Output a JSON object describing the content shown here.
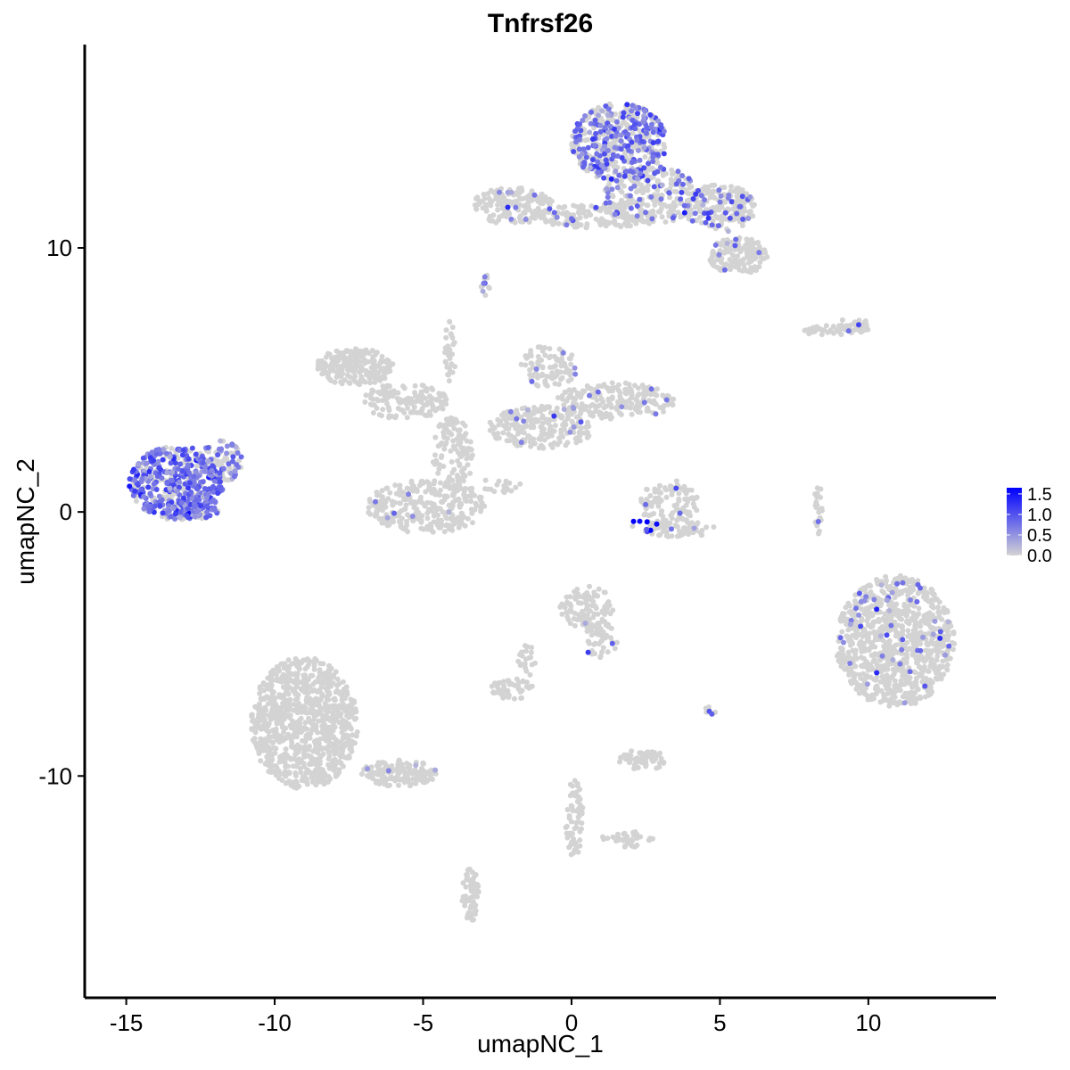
{
  "chart_data": {
    "type": "scatter",
    "title": "Tnfrsf26",
    "xlabel": "umapNC_1",
    "ylabel": "umapNC_2",
    "xlim": [
      -16.4,
      14.3
    ],
    "ylim": [
      -18.4,
      17.7
    ],
    "x_ticks": [
      -15,
      -10,
      -5,
      0,
      5,
      10
    ],
    "y_ticks": [
      -10,
      0,
      10
    ],
    "x_tick_labels": [
      "-15",
      "-10",
      "-5",
      "0",
      "5",
      "10"
    ],
    "y_tick_labels": [
      "-10",
      "0",
      "10"
    ],
    "grid": false,
    "colors": {
      "low": "#d3d3d3",
      "high": "#0000ff"
    },
    "legend": {
      "placement": "right",
      "min": 0,
      "max": 1.65,
      "labels": [
        "1.5",
        "1.0",
        "0.5",
        "0.0"
      ],
      "values": [
        1.5,
        1.0,
        0.5,
        0.0
      ]
    },
    "clusters": [
      {
        "cx": -13.3,
        "cy": 1.1,
        "rx": 1.6,
        "ry": 1.4,
        "n": 520,
        "expr_frac": 0.65,
        "expr_mean": 0.8
      },
      {
        "cx": -11.8,
        "cy": 1.9,
        "rx": 0.7,
        "ry": 0.8,
        "n": 80,
        "expr_frac": 0.5,
        "expr_mean": 0.7
      },
      {
        "cx": -12.4,
        "cy": 0.0,
        "rx": 0.5,
        "ry": 0.25,
        "n": 30,
        "expr_frac": 0.6,
        "expr_mean": 0.7
      },
      {
        "cx": 1.6,
        "cy": 14.0,
        "rx": 1.6,
        "ry": 1.5,
        "n": 480,
        "expr_frac": 0.4,
        "expr_mean": 0.8
      },
      {
        "cx": 2.7,
        "cy": 12.0,
        "rx": 1.6,
        "ry": 1.1,
        "n": 260,
        "expr_frac": 0.2,
        "expr_mean": 0.8
      },
      {
        "cx": 5.0,
        "cy": 11.5,
        "rx": 1.2,
        "ry": 0.9,
        "n": 200,
        "expr_frac": 0.12,
        "expr_mean": 0.8
      },
      {
        "cx": 5.6,
        "cy": 9.7,
        "rx": 1.0,
        "ry": 0.7,
        "n": 150,
        "expr_frac": 0.06,
        "expr_mean": 0.7
      },
      {
        "cx": -2.0,
        "cy": 11.6,
        "rx": 1.4,
        "ry": 0.7,
        "n": 160,
        "expr_frac": 0.08,
        "expr_mean": 0.8
      },
      {
        "cx": 0.8,
        "cy": 11.2,
        "rx": 2.0,
        "ry": 0.45,
        "n": 140,
        "expr_frac": 0.1,
        "expr_mean": 0.8
      },
      {
        "cx": -2.9,
        "cy": 8.6,
        "rx": 0.15,
        "ry": 0.4,
        "n": 12,
        "expr_frac": 0.2,
        "expr_mean": 0.6
      },
      {
        "cx": -7.3,
        "cy": 5.5,
        "rx": 1.3,
        "ry": 0.7,
        "n": 210,
        "expr_frac": 0.0,
        "expr_mean": 0.0
      },
      {
        "cx": -5.6,
        "cy": 4.2,
        "rx": 1.4,
        "ry": 0.7,
        "n": 140,
        "expr_frac": 0.0,
        "expr_mean": 0.0
      },
      {
        "cx": -4.0,
        "cy": 2.2,
        "rx": 0.7,
        "ry": 1.4,
        "n": 120,
        "expr_frac": 0.0,
        "expr_mean": 0.0
      },
      {
        "cx": -4.9,
        "cy": 0.2,
        "rx": 2.0,
        "ry": 1.0,
        "n": 300,
        "expr_frac": 0.01,
        "expr_mean": 0.6
      },
      {
        "cx": -1.0,
        "cy": 3.2,
        "rx": 1.8,
        "ry": 0.8,
        "n": 220,
        "expr_frac": 0.02,
        "expr_mean": 0.6
      },
      {
        "cx": -0.8,
        "cy": 5.5,
        "rx": 1.0,
        "ry": 0.8,
        "n": 90,
        "expr_frac": 0.03,
        "expr_mean": 0.6
      },
      {
        "cx": 1.5,
        "cy": 4.2,
        "rx": 2.0,
        "ry": 0.7,
        "n": 200,
        "expr_frac": 0.03,
        "expr_mean": 0.6
      },
      {
        "cx": -4.1,
        "cy": 6.1,
        "rx": 0.2,
        "ry": 1.2,
        "n": 30,
        "expr_frac": 0.0,
        "expr_mean": 0.0
      },
      {
        "cx": -2.6,
        "cy": 1.0,
        "rx": 0.9,
        "ry": 0.3,
        "n": 20,
        "expr_frac": 0.0,
        "expr_mean": 0.0
      },
      {
        "cx": 3.3,
        "cy": 0.3,
        "rx": 1.0,
        "ry": 0.9,
        "n": 110,
        "expr_frac": 0.02,
        "expr_mean": 0.8
      },
      {
        "cx": 3.6,
        "cy": -0.6,
        "rx": 1.2,
        "ry": 0.4,
        "n": 60,
        "expr_frac": 0.08,
        "expr_mean": 0.9
      },
      {
        "cx": 2.4,
        "cy": -0.5,
        "rx": 0.5,
        "ry": 0.25,
        "n": 10,
        "expr_frac": 0.6,
        "expr_mean": 1.5
      },
      {
        "cx": 8.8,
        "cy": 6.9,
        "rx": 1.2,
        "ry": 0.2,
        "n": 50,
        "expr_frac": 0.02,
        "expr_mean": 0.6
      },
      {
        "cx": 9.5,
        "cy": 7.1,
        "rx": 0.5,
        "ry": 0.25,
        "n": 25,
        "expr_frac": 0.06,
        "expr_mean": 0.7
      },
      {
        "cx": 8.3,
        "cy": 0.1,
        "rx": 0.15,
        "ry": 1.0,
        "n": 25,
        "expr_frac": 0.04,
        "expr_mean": 0.6
      },
      {
        "cx": 10.9,
        "cy": -4.9,
        "rx": 2.0,
        "ry": 2.5,
        "n": 900,
        "expr_frac": 0.05,
        "expr_mean": 0.7
      },
      {
        "cx": 0.5,
        "cy": -3.6,
        "rx": 0.9,
        "ry": 0.8,
        "n": 100,
        "expr_frac": 0.04,
        "expr_mean": 0.6
      },
      {
        "cx": 1.0,
        "cy": -4.9,
        "rx": 0.6,
        "ry": 0.7,
        "n": 50,
        "expr_frac": 0.04,
        "expr_mean": 0.7
      },
      {
        "cx": -2.0,
        "cy": -6.7,
        "rx": 0.7,
        "ry": 0.4,
        "n": 50,
        "expr_frac": 0.02,
        "expr_mean": 0.6
      },
      {
        "cx": -1.5,
        "cy": -5.7,
        "rx": 0.3,
        "ry": 0.7,
        "n": 20,
        "expr_frac": 0.0,
        "expr_mean": 0.0
      },
      {
        "cx": 2.4,
        "cy": -9.4,
        "rx": 0.8,
        "ry": 0.4,
        "n": 60,
        "expr_frac": 0.01,
        "expr_mean": 0.6
      },
      {
        "cx": -9.0,
        "cy": -8.0,
        "rx": 1.8,
        "ry": 2.5,
        "n": 900,
        "expr_frac": 0.0,
        "expr_mean": 0.0
      },
      {
        "cx": -5.8,
        "cy": -9.9,
        "rx": 1.3,
        "ry": 0.5,
        "n": 150,
        "expr_frac": 0.02,
        "expr_mean": 0.6
      },
      {
        "cx": -3.4,
        "cy": -14.5,
        "rx": 0.3,
        "ry": 1.0,
        "n": 60,
        "expr_frac": 0.0,
        "expr_mean": 0.0
      },
      {
        "cx": 0.1,
        "cy": -11.6,
        "rx": 0.3,
        "ry": 1.6,
        "n": 60,
        "expr_frac": 0.0,
        "expr_mean": 0.0
      },
      {
        "cx": 1.9,
        "cy": -12.4,
        "rx": 0.9,
        "ry": 0.3,
        "n": 40,
        "expr_frac": 0.0,
        "expr_mean": 0.0
      },
      {
        "cx": 4.7,
        "cy": -7.5,
        "rx": 0.2,
        "ry": 0.2,
        "n": 8,
        "expr_frac": 0.3,
        "expr_mean": 0.8
      }
    ]
  }
}
